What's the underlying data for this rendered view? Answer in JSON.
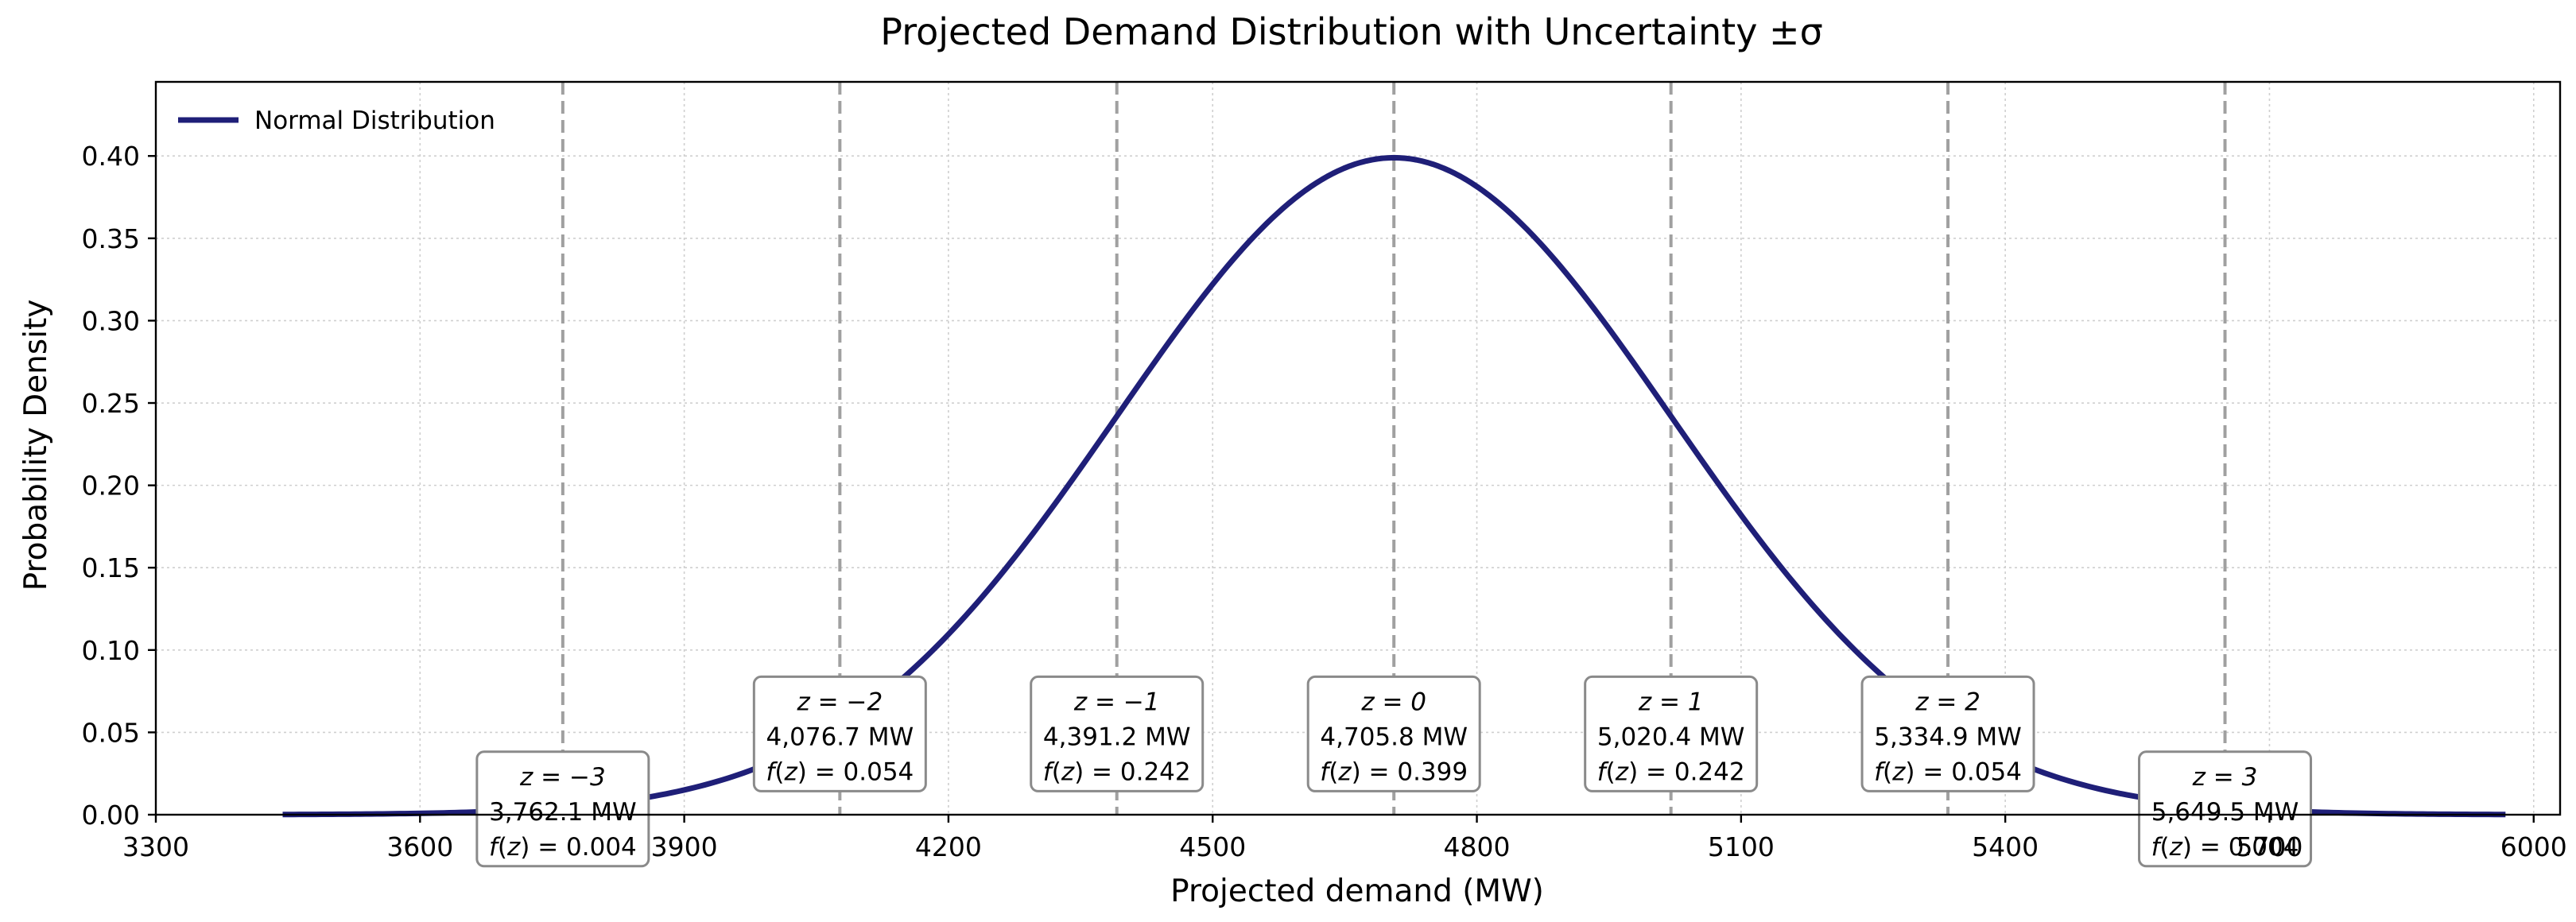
{
  "chart_data": {
    "type": "line",
    "title": "Projected Demand Distribution with Uncertainty ±σ",
    "xlabel": "Projected demand (MW)",
    "ylabel": "Probability Density",
    "xlim": [
      3300,
      6030
    ],
    "ylim": [
      0,
      0.445
    ],
    "xticks": [
      3300,
      3600,
      3900,
      4200,
      4500,
      4800,
      5100,
      5400,
      5700,
      6000
    ],
    "yticks": [
      "0.00",
      "0.05",
      "0.10",
      "0.15",
      "0.20",
      "0.25",
      "0.30",
      "0.35",
      "0.40"
    ],
    "grid": true,
    "legend_position": "top-left",
    "series": [
      {
        "name": "Normal Distribution",
        "color": "#1f1f78",
        "mean": 4705.8,
        "std": 314.6,
        "x_range": [
          3444,
          5968
        ]
      }
    ],
    "annotations": [
      {
        "x": 3762.1,
        "z": "z = −3",
        "mw": "3,762.1 MW",
        "fz": "= 0.004"
      },
      {
        "x": 4076.7,
        "z": "z = −2",
        "mw": "4,076.7 MW",
        "fz": "= 0.054"
      },
      {
        "x": 4391.2,
        "z": "z = −1",
        "mw": "4,391.2 MW",
        "fz": "= 0.242"
      },
      {
        "x": 4705.8,
        "z": "z = 0",
        "mw": "4,705.8 MW",
        "fz": "= 0.399"
      },
      {
        "x": 5020.4,
        "z": "z = 1",
        "mw": "5,020.4 MW",
        "fz": "= 0.242"
      },
      {
        "x": 5334.9,
        "z": "z = 2",
        "mw": "5,334.9 MW",
        "fz": "= 0.054"
      },
      {
        "x": 5649.5,
        "z": "z = 3",
        "mw": "5,649.5 MW",
        "fz": "= 0.004"
      }
    ]
  }
}
